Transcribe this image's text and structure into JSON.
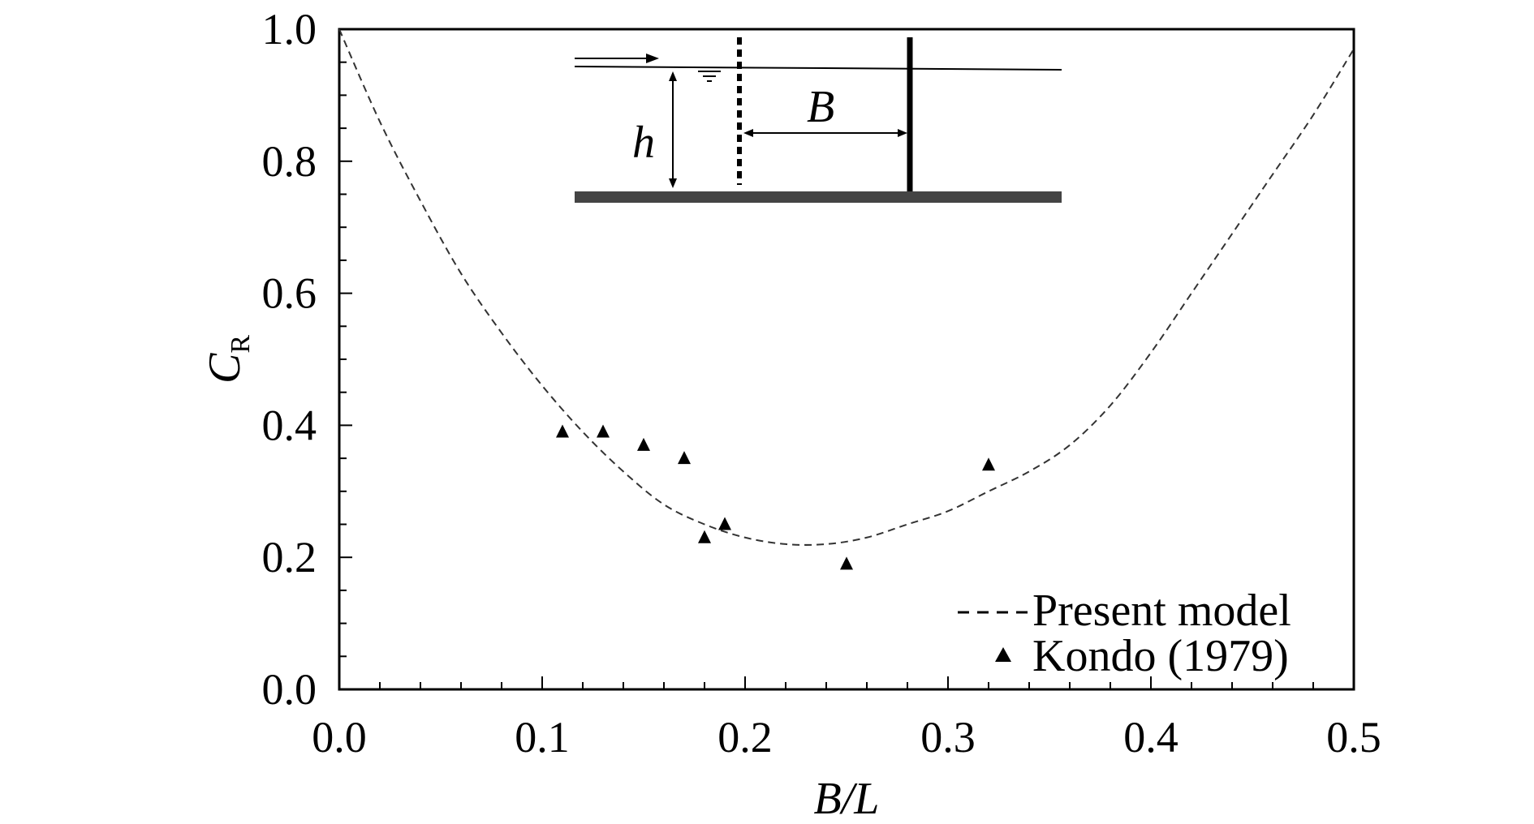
{
  "chart_data": {
    "type": "scatter",
    "title": "",
    "xlabel": "B/L",
    "ylabel": {
      "main": "C",
      "sub": "R"
    },
    "xlim": [
      0.0,
      0.5
    ],
    "ylim": [
      0.0,
      1.0
    ],
    "x_ticks": [
      "0.0",
      "0.1",
      "0.2",
      "0.3",
      "0.4",
      "0.5"
    ],
    "y_ticks": [
      "0.0",
      "0.2",
      "0.4",
      "0.6",
      "0.8",
      "1.0"
    ],
    "grid": false,
    "legend_position": "bottom-right",
    "series": [
      {
        "name": "Present model",
        "style": "dashed-line",
        "x": [
          0.0,
          0.02,
          0.04,
          0.06,
          0.08,
          0.1,
          0.12,
          0.14,
          0.16,
          0.18,
          0.2,
          0.22,
          0.24,
          0.26,
          0.28,
          0.3,
          0.32,
          0.34,
          0.36,
          0.38,
          0.4,
          0.42,
          0.44,
          0.46,
          0.48,
          0.5
        ],
        "y": [
          1.0,
          0.86,
          0.74,
          0.63,
          0.54,
          0.46,
          0.39,
          0.33,
          0.28,
          0.25,
          0.23,
          0.22,
          0.22,
          0.23,
          0.25,
          0.27,
          0.3,
          0.33,
          0.37,
          0.43,
          0.51,
          0.6,
          0.69,
          0.78,
          0.87,
          0.97
        ]
      },
      {
        "name": "Kondo (1979)",
        "style": "triangle-marker",
        "x": [
          0.11,
          0.13,
          0.15,
          0.17,
          0.18,
          0.19,
          0.25,
          0.32
        ],
        "y": [
          0.39,
          0.39,
          0.37,
          0.35,
          0.23,
          0.25,
          0.19,
          0.34
        ]
      }
    ],
    "inset": {
      "labels": {
        "height": "h",
        "spacing": "B"
      }
    }
  }
}
